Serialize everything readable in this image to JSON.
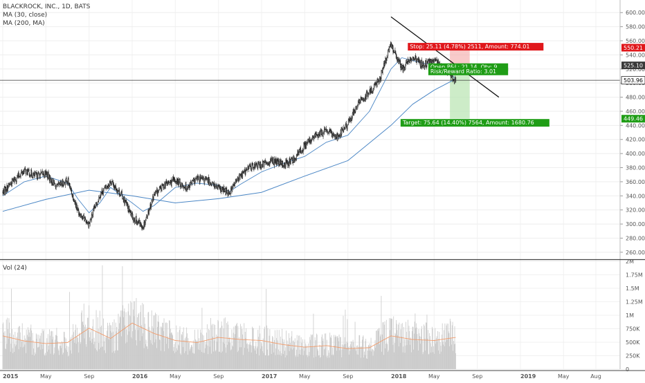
{
  "colors": {
    "candle": "#222222",
    "ma30": "#4a86c5",
    "ma200": "#4a86c5",
    "volume": "#c9c9c9",
    "volume_ma": "#f39c6b",
    "stop_zone": "#f4a6a6",
    "target_zone": "#b8e4b0",
    "stop_label_bg": "#e0171b",
    "pnl_label_bg": "#1f9d16",
    "target_label_bg": "#1f9d16",
    "price_label_dark": "#3a3a3a"
  },
  "header": {
    "title": "BLACKROCK, INC., 1D, BATS",
    "ma30_label": "MA (30, close)",
    "ma200_label": "MA (200, MA)",
    "vol_label": "Vol (24)"
  },
  "chart_data": [
    {
      "type": "candlestick",
      "title": "BLACKROCK, INC., 1D, BATS",
      "ylim": [
        252,
        612
      ],
      "y_ticks": [
        "600.00",
        "580.00",
        "560.00",
        "540.00",
        "520.00",
        "500.00",
        "480.00",
        "460.00",
        "440.00",
        "420.00",
        "400.00",
        "380.00",
        "360.00",
        "340.00",
        "320.00",
        "300.00",
        "280.00",
        "260.00"
      ],
      "x_ticks": [
        "2015",
        "May",
        "Sep",
        "2016",
        "May",
        "Sep",
        "2017",
        "May",
        "Sep",
        "2018",
        "May",
        "Sep",
        "2019",
        "May",
        "Aug"
      ],
      "series": [
        {
          "name": "BLACKROCK, INC., 1D, BATS",
          "x": [
            "2015-01",
            "2015-02",
            "2015-03",
            "2015-04",
            "2015-05",
            "2015-06",
            "2015-07",
            "2015-08",
            "2015-09",
            "2015-10",
            "2015-11",
            "2015-12",
            "2016-01",
            "2016-02",
            "2016-03",
            "2016-04",
            "2016-05",
            "2016-06",
            "2016-07",
            "2016-08",
            "2016-09",
            "2016-10",
            "2016-11",
            "2016-12",
            "2017-01",
            "2017-02",
            "2017-03",
            "2017-04",
            "2017-05",
            "2017-06",
            "2017-07",
            "2017-08",
            "2017-09",
            "2017-10",
            "2017-11",
            "2017-12",
            "2018-01",
            "2018-02",
            "2018-03",
            "2018-04",
            "2018-05",
            "2018-06",
            "2018-07"
          ],
          "values": [
            345,
            362,
            376,
            368,
            372,
            352,
            362,
            318,
            300,
            342,
            360,
            342,
            310,
            296,
            340,
            356,
            362,
            352,
            364,
            362,
            350,
            345,
            368,
            382,
            384,
            390,
            384,
            392,
            412,
            425,
            432,
            424,
            442,
            472,
            486,
            508,
            555,
            520,
            538,
            525,
            532,
            520,
            503.96
          ]
        },
        {
          "name": "MA (30, close)",
          "x": [
            "2015-01",
            "2015-03",
            "2015-05",
            "2015-07",
            "2015-08",
            "2015-09",
            "2015-10",
            "2015-11",
            "2016-01",
            "2016-02",
            "2016-03",
            "2016-05",
            "2016-07",
            "2016-09",
            "2016-10",
            "2016-11",
            "2017-01",
            "2017-03",
            "2017-05",
            "2017-07",
            "2017-09",
            "2017-11",
            "2018-01",
            "2018-02",
            "2018-03",
            "2018-04",
            "2018-05",
            "2018-06",
            "2018-07"
          ],
          "values": [
            340,
            360,
            368,
            358,
            335,
            316,
            330,
            352,
            330,
            318,
            326,
            352,
            358,
            355,
            346,
            356,
            374,
            386,
            396,
            416,
            426,
            460,
            520,
            536,
            532,
            528,
            526,
            524,
            505
          ]
        },
        {
          "name": "MA (200, MA)",
          "x": [
            "2015-01",
            "2015-05",
            "2015-09",
            "2016-01",
            "2016-05",
            "2016-09",
            "2017-01",
            "2017-05",
            "2017-09",
            "2018-01",
            "2018-03",
            "2018-05",
            "2018-07"
          ],
          "values": [
            318,
            335,
            348,
            340,
            330,
            336,
            345,
            368,
            390,
            440,
            470,
            490,
            506
          ]
        }
      ],
      "trendline": {
        "from": [
          "2018-01",
          594
        ],
        "to": [
          "2018-11",
          480
        ]
      },
      "price_labels": [
        "550.21",
        "525.10",
        "503.96",
        "449.46"
      ],
      "position": {
        "stop_label": "Stop: 25.11 (4.78%) 2511, Amount: 774.01",
        "pnl_label": "Open P&L: 21.14, Qty: 9",
        "rr_label": "Risk/Reward Ratio: 3.01",
        "target_label": "Target: 75.64 (14.40%) 7564, Amount: 1680.76",
        "entry": 525.1,
        "stop": 550.21,
        "target": 449.46
      }
    },
    {
      "type": "bar",
      "title": "Vol (24)",
      "ylim": [
        0,
        2000000
      ],
      "y_ticks": [
        "2M",
        "1.75M",
        "1.5M",
        "1.25M",
        "1M",
        "750K",
        "500K",
        "250K",
        "0"
      ],
      "series": [
        {
          "name": "Vol (24)",
          "x": [
            "2015-01",
            "2015-03",
            "2015-05",
            "2015-07",
            "2015-09",
            "2015-11",
            "2016-01",
            "2016-03",
            "2016-05",
            "2016-07",
            "2016-09",
            "2016-11",
            "2017-01",
            "2017-03",
            "2017-05",
            "2017-07",
            "2017-09",
            "2017-11",
            "2018-01",
            "2018-03",
            "2018-05",
            "2018-07"
          ],
          "values": [
            650000,
            550000,
            500000,
            520000,
            800000,
            600000,
            900000,
            700000,
            560000,
            520000,
            620000,
            580000,
            560000,
            480000,
            430000,
            460000,
            400000,
            420000,
            650000,
            580000,
            560000,
            620000
          ]
        }
      ]
    }
  ]
}
